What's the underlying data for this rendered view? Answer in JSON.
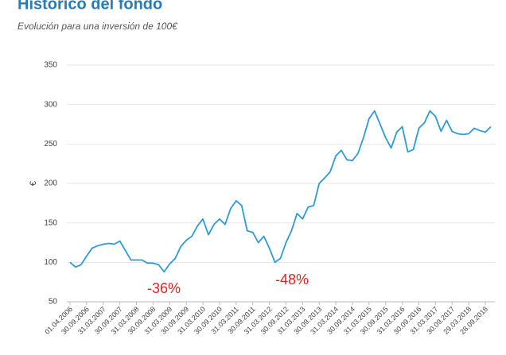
{
  "chart_data": {
    "type": "line",
    "title": "Histórico del fondo",
    "subtitle": "Evolución para una inversión de 100€",
    "y_label": "€",
    "categories": [
      "01.04.2006",
      null,
      null,
      "30.09.2006",
      null,
      null,
      "31.03.2007",
      null,
      null,
      "30.09.2007",
      null,
      null,
      "31.03.2008",
      null,
      null,
      "30.09.2008",
      null,
      null,
      "31.03.2009",
      null,
      null,
      "30.09.2009",
      null,
      null,
      "31.03.2010",
      null,
      null,
      "30.09.2010",
      null,
      null,
      "31.03.2011",
      null,
      null,
      "30.09.2011",
      null,
      null,
      "31.03.2012",
      null,
      null,
      "30.09.2012",
      null,
      null,
      "31.03.2013",
      null,
      null,
      "30.09.2013",
      null,
      null,
      "31.03.2014",
      null,
      null,
      "30.09.2014",
      null,
      null,
      "31.03.2015",
      null,
      null,
      "30.09.2015",
      null,
      null,
      "31.03.2016",
      null,
      null,
      "30.09.2016",
      null,
      null,
      "31.03.2017",
      null,
      null,
      "30.09.2017",
      null,
      null,
      "29.03.2018",
      null,
      null,
      "28.09.2018",
      null
    ],
    "values": [
      100,
      94,
      97,
      108,
      118,
      121,
      123,
      124,
      123,
      127,
      115,
      103,
      103,
      103,
      99,
      99,
      97,
      88,
      98,
      105,
      120,
      128,
      133,
      146,
      155,
      135,
      148,
      155,
      148,
      168,
      178,
      172,
      140,
      138,
      125,
      133,
      118,
      100,
      105,
      125,
      140,
      162,
      155,
      170,
      172,
      200,
      207,
      215,
      235,
      242,
      230,
      229,
      238,
      258,
      282,
      292,
      275,
      258,
      245,
      265,
      272,
      240,
      243,
      270,
      277,
      292,
      285,
      266,
      280,
      266,
      263,
      262,
      263,
      270,
      267,
      265,
      272
    ],
    "color": "#2e9bd6",
    "ylim": [
      50,
      350
    ],
    "yticks": [
      50,
      100,
      150,
      200,
      250,
      300,
      350
    ],
    "grid": true,
    "annotations": [
      "-36%",
      "-48%"
    ],
    "annotation_color": "#e8231f"
  }
}
